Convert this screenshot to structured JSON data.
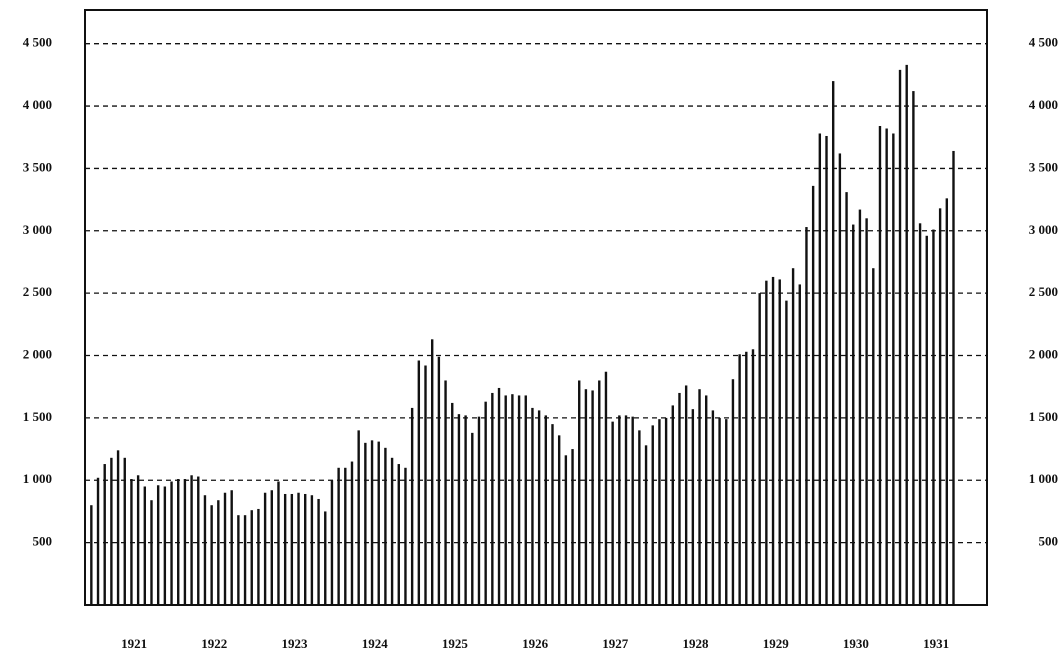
{
  "chart_data": {
    "type": "bar",
    "categories": [
      "1921",
      "1922",
      "1923",
      "1924",
      "1925",
      "1926",
      "1927",
      "1928",
      "1929",
      "1930",
      "1931"
    ],
    "values": [
      [
        800,
        1020,
        1130,
        1180,
        1240,
        1180,
        1010,
        1040,
        950,
        840,
        960,
        950
      ],
      [
        990,
        1010,
        1010,
        1040,
        1030,
        880,
        800,
        840,
        900,
        920,
        720,
        720
      ],
      [
        760,
        770,
        900,
        920,
        990,
        890,
        890,
        900,
        890,
        880,
        850,
        750
      ],
      [
        1000,
        1100,
        1100,
        1150,
        1400,
        1300,
        1320,
        1310,
        1260,
        1180,
        1130,
        1100
      ],
      [
        1580,
        1960,
        1920,
        2130,
        1990,
        1800,
        1620,
        1530,
        1520,
        1380,
        1510,
        1630
      ],
      [
        1700,
        1740,
        1680,
        1690,
        1680,
        1680,
        1580,
        1560,
        1520,
        1450,
        1360,
        1200
      ],
      [
        1250,
        1800,
        1730,
        1720,
        1800,
        1870,
        1470,
        1520,
        1520,
        1510,
        1400,
        1280
      ],
      [
        1440,
        1490,
        1500,
        1600,
        1700,
        1760,
        1570,
        1730,
        1680,
        1560,
        1500,
        1490
      ],
      [
        1810,
        2010,
        2030,
        2050,
        2500,
        2600,
        2630,
        2610,
        2440,
        2700,
        2570,
        3030
      ],
      [
        3360,
        3780,
        3760,
        4200,
        3620,
        3310,
        3050,
        3170,
        3100,
        2700,
        3840,
        3820
      ],
      [
        3780,
        4290,
        4330,
        4120,
        3060,
        2960,
        3010,
        3180,
        3260,
        3640
      ]
    ],
    "color": "#111111",
    "ylim": [
      0,
      4770
    ],
    "yticks": [
      500,
      {
        "value": 1000,
        "label": "1 000"
      },
      {
        "value": 1500,
        "label": "1 500"
      },
      {
        "value": 2000,
        "label": "2 000"
      },
      {
        "value": 2500,
        "label": "2 500"
      },
      {
        "value": 3000,
        "label": "3 000"
      },
      {
        "value": 3500,
        "label": "3 500"
      },
      {
        "value": 4000,
        "label": "4 000"
      },
      {
        "value": 4500,
        "label": "4 500"
      }
    ],
    "grid": true
  }
}
